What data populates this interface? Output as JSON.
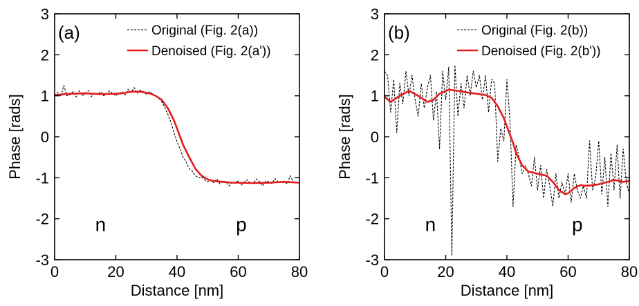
{
  "chart_data": [
    {
      "type": "line",
      "panel_label": "(a)",
      "xlabel": "Distance [nm]",
      "ylabel": "Phase [rads]",
      "xlim": [
        0,
        80
      ],
      "ylim": [
        -3,
        3
      ],
      "x_ticks": [
        "0",
        "20",
        "40",
        "60",
        "80"
      ],
      "y_ticks": [
        "3",
        "2",
        "1",
        "0",
        "-1",
        "-2",
        "-3"
      ],
      "grid": false,
      "legend_position": "top-right",
      "annotations": [
        {
          "text": "n",
          "x": 15,
          "y": -2.1
        },
        {
          "text": "p",
          "x": 61,
          "y": -2.1
        }
      ],
      "series": [
        {
          "name": "Original (Fig. 2(a))",
          "color": "#000000",
          "style": "dashed",
          "x": [
            0,
            1,
            2,
            3,
            4,
            5,
            6,
            7,
            8,
            9,
            10,
            11,
            12,
            13,
            14,
            15,
            16,
            17,
            18,
            19,
            20,
            21,
            22,
            23,
            24,
            25,
            26,
            27,
            28,
            29,
            30,
            31,
            32,
            33,
            34,
            35,
            36,
            37,
            38,
            39,
            40,
            41,
            42,
            43,
            44,
            45,
            46,
            47,
            48,
            49,
            50,
            51,
            52,
            53,
            54,
            55,
            56,
            57,
            58,
            59,
            60,
            61,
            62,
            63,
            64,
            65,
            66,
            67,
            68,
            69,
            70,
            71,
            72,
            73,
            74,
            75,
            76,
            77,
            78,
            79,
            80
          ],
          "y": [
            1.0,
            1.08,
            0.98,
            1.25,
            1.0,
            1.02,
            1.1,
            0.97,
            1.12,
            1.0,
            1.05,
            1.13,
            0.98,
            1.06,
            1.03,
            1.1,
            1.0,
            1.04,
            1.12,
            1.05,
            1.0,
            1.06,
            1.1,
            1.02,
            1.16,
            1.08,
            1.2,
            1.06,
            1.14,
            1.1,
            1.04,
            1.1,
            1.05,
            1.0,
            0.94,
            0.85,
            0.72,
            0.55,
            0.35,
            0.1,
            -0.12,
            -0.3,
            -0.5,
            -0.62,
            -0.78,
            -0.84,
            -0.95,
            -1.0,
            -0.98,
            -1.05,
            -1.1,
            -1.05,
            -1.12,
            -1.03,
            -1.15,
            -1.08,
            -1.1,
            -1.2,
            -1.1,
            -1.12,
            -1.08,
            -1.18,
            -1.1,
            -1.05,
            -1.15,
            -1.12,
            -1.03,
            -1.1,
            -1.2,
            -1.08,
            -1.1,
            -1.14,
            -1.02,
            -1.1,
            -1.12,
            -1.08,
            -1.15,
            -0.95,
            -1.1,
            -1.12,
            -1.1
          ]
        },
        {
          "name": "Denoised (Fig. 2(a'))",
          "color": "#e3191c",
          "style": "solid",
          "x": [
            0,
            5,
            10,
            15,
            20,
            22,
            25,
            28,
            31,
            33,
            35,
            37,
            39,
            40,
            41,
            42,
            44,
            46,
            48,
            50,
            52,
            55,
            58,
            60,
            65,
            70,
            75,
            80
          ],
          "y": [
            1.02,
            1.05,
            1.06,
            1.04,
            1.05,
            1.06,
            1.1,
            1.1,
            1.06,
            1.0,
            0.9,
            0.7,
            0.4,
            0.2,
            0.0,
            -0.2,
            -0.5,
            -0.78,
            -0.95,
            -1.04,
            -1.08,
            -1.1,
            -1.12,
            -1.12,
            -1.13,
            -1.12,
            -1.1,
            -1.12
          ]
        }
      ]
    },
    {
      "type": "line",
      "panel_label": "(b)",
      "xlabel": "Distance [nm]",
      "ylabel": "Phase [rads]",
      "xlim": [
        0,
        80
      ],
      "ylim": [
        -3,
        3
      ],
      "x_ticks": [
        "0",
        "20",
        "40",
        "60",
        "80"
      ],
      "y_ticks": [
        "3",
        "2",
        "1",
        "0",
        "-1",
        "-2",
        "-3"
      ],
      "grid": false,
      "legend_position": "top-right",
      "annotations": [
        {
          "text": "n",
          "x": 15,
          "y": -2.1
        },
        {
          "text": "p",
          "x": 63,
          "y": -2.1
        }
      ],
      "series": [
        {
          "name": "Original (Fig. 2(b))",
          "color": "#000000",
          "style": "dashed",
          "x": [
            0,
            1,
            2,
            3,
            4,
            5,
            6,
            7,
            8,
            9,
            10,
            11,
            12,
            13,
            14,
            15,
            16,
            17,
            18,
            19,
            20,
            21,
            22,
            23,
            24,
            25,
            26,
            27,
            28,
            29,
            30,
            31,
            32,
            33,
            34,
            35,
            36,
            37,
            38,
            39,
            40,
            41,
            42,
            43,
            44,
            45,
            46,
            47,
            48,
            49,
            50,
            51,
            52,
            53,
            54,
            55,
            56,
            57,
            58,
            59,
            60,
            61,
            62,
            63,
            64,
            65,
            66,
            67,
            68,
            69,
            70,
            71,
            72,
            73,
            74,
            75,
            76,
            77,
            78,
            79,
            80
          ],
          "y": [
            1.6,
            1.5,
            0.6,
            1.4,
            0.1,
            1.3,
            0.8,
            1.6,
            1.0,
            1.5,
            0.9,
            0.5,
            1.3,
            0.7,
            1.2,
            1.5,
            0.4,
            1.1,
            -0.3,
            1.6,
            0.9,
            1.7,
            -2.9,
            1.75,
            0.5,
            1.3,
            0.7,
            1.5,
            1.0,
            1.6,
            1.2,
            1.5,
            0.9,
            1.5,
            0.6,
            1.4,
            1.3,
            -0.6,
            0.2,
            -0.1,
            1.4,
            0.4,
            -1.7,
            -0.2,
            -0.5,
            -0.9,
            -0.7,
            -0.9,
            -1.2,
            -0.5,
            -1.3,
            -0.7,
            -1.5,
            -0.8,
            -1.2,
            -1.7,
            -0.9,
            -1.5,
            -1.1,
            -1.4,
            -0.9,
            -1.6,
            -0.9,
            -1.3,
            -1.5,
            -1.2,
            -1.5,
            -0.1,
            -1.3,
            -1.0,
            -0.1,
            -1.4,
            -0.5,
            -1.7,
            -0.4,
            -1.3,
            -0.2,
            -1.5,
            -0.3,
            -1.1,
            -1.4
          ]
        },
        {
          "name": "Denoised (Fig. 2(b'))",
          "color": "#e3191c",
          "style": "solid",
          "x": [
            0,
            2,
            5,
            8,
            11,
            14,
            16,
            18,
            21,
            24,
            27,
            30,
            33,
            35,
            37,
            39,
            40,
            41,
            42,
            43,
            45,
            47,
            50,
            53,
            55,
            57,
            59,
            60,
            62,
            64,
            66,
            70,
            73,
            75,
            78,
            80
          ],
          "y": [
            0.98,
            0.85,
            1.0,
            1.12,
            1.0,
            0.85,
            0.9,
            1.05,
            1.15,
            1.12,
            1.08,
            1.05,
            1.02,
            0.95,
            0.75,
            0.45,
            0.25,
            0.05,
            -0.15,
            -0.4,
            -0.7,
            -0.85,
            -0.9,
            -0.95,
            -1.1,
            -1.3,
            -1.4,
            -1.38,
            -1.25,
            -1.18,
            -1.2,
            -1.16,
            -1.1,
            -1.05,
            -1.1,
            -1.08
          ]
        }
      ]
    }
  ]
}
